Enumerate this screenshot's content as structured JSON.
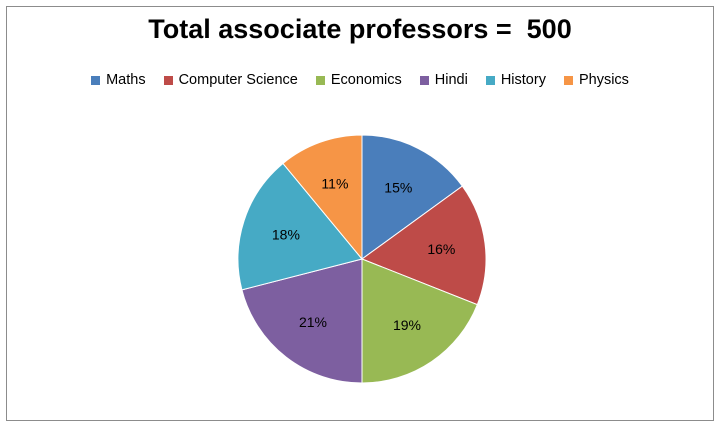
{
  "chart_data": {
    "type": "pie",
    "title": "Total associate professors =  500",
    "legend_position": "top",
    "slices": [
      {
        "label": "Maths",
        "value": 15,
        "value_label": "15%",
        "color": "#4a7ebb"
      },
      {
        "label": "Computer Science",
        "value": 16,
        "value_label": "16%",
        "color": "#be4b48"
      },
      {
        "label": "Economics",
        "value": 19,
        "value_label": "19%",
        "color": "#98b954"
      },
      {
        "label": "Hindi",
        "value": 21,
        "value_label": "21%",
        "color": "#7d5fa0"
      },
      {
        "label": "History",
        "value": 18,
        "value_label": "18%",
        "color": "#46aac5"
      },
      {
        "label": "Physics",
        "value": 11,
        "value_label": "11%",
        "color": "#f69546"
      }
    ]
  }
}
